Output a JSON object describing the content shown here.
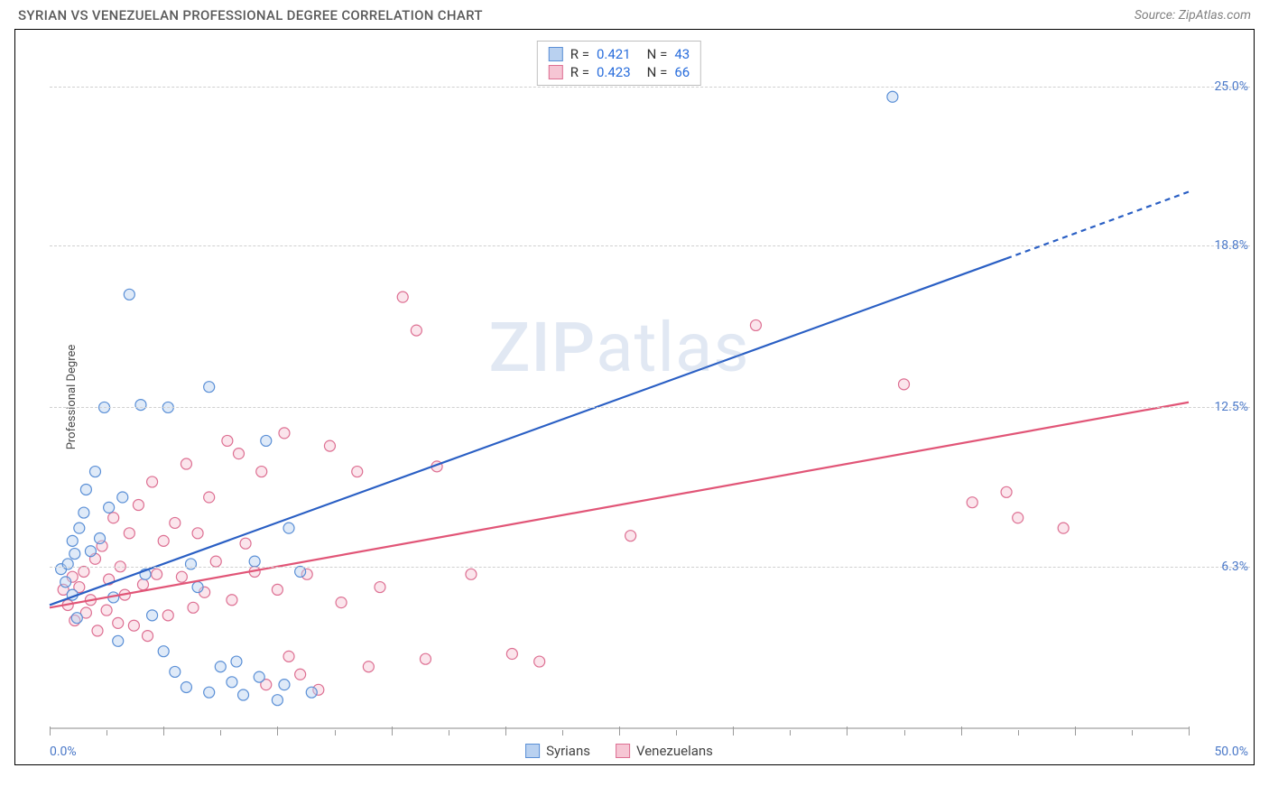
{
  "header": {
    "title": "SYRIAN VS VENEZUELAN PROFESSIONAL DEGREE CORRELATION CHART",
    "source": "Source: ZipAtlas.com"
  },
  "watermark": "ZIPatlas",
  "chart": {
    "type": "scatter",
    "y_axis_label": "Professional Degree",
    "xlim": [
      0,
      50
    ],
    "ylim": [
      0,
      27
    ],
    "x_tick_positions": [
      0,
      2.5,
      5,
      7.5,
      10,
      12.5,
      15,
      17.5,
      20,
      22.5,
      25,
      27.5,
      30,
      32.5,
      35,
      37.5,
      40,
      42.5,
      45,
      47.5,
      50
    ],
    "x_major_ticks": [
      0,
      5,
      10,
      15,
      20,
      25,
      30,
      35,
      40,
      45,
      50
    ],
    "x_label_min": "0.0%",
    "x_label_max": "50.0%",
    "y_gridlines": [
      {
        "value": 6.3,
        "label": "6.3%"
      },
      {
        "value": 12.5,
        "label": "12.5%"
      },
      {
        "value": 18.8,
        "label": "18.8%"
      },
      {
        "value": 25.0,
        "label": "25.0%"
      }
    ],
    "background_color": "#ffffff",
    "grid_color": "#d0d0d0",
    "axis_label_color": "#4a78c8",
    "border_color": "#000000",
    "marker_radius": 6,
    "marker_stroke_width": 1.2,
    "marker_fill_opacity": 0.45,
    "trendline_width": 2.2,
    "stats_legend": {
      "rows": [
        {
          "swatch_fill": "#b9d1f0",
          "swatch_stroke": "#5a8fd6",
          "r_label": "R =",
          "r_value": "0.421",
          "n_label": "N =",
          "n_value": "43"
        },
        {
          "swatch_fill": "#f6c6d4",
          "swatch_stroke": "#dd6f92",
          "r_label": "R =",
          "r_value": "0.423",
          "n_label": "N =",
          "n_value": "66"
        }
      ]
    },
    "series_legend": [
      {
        "swatch_fill": "#b9d1f0",
        "swatch_stroke": "#5a8fd6",
        "label": "Syrians"
      },
      {
        "swatch_fill": "#f6c6d4",
        "swatch_stroke": "#dd6f92",
        "label": "Venezuelans"
      }
    ],
    "series": [
      {
        "name": "Syrians",
        "marker_fill": "#b9d1f0",
        "marker_stroke": "#5a8fd6",
        "trendline_color": "#2a5fc4",
        "trendline": {
          "x1": 0,
          "y1": 4.8,
          "x2": 42,
          "y2": 18.3,
          "dash_from_x": 42,
          "dash_to_x": 50,
          "dash_to_y": 20.9
        },
        "points": [
          [
            0.5,
            6.2
          ],
          [
            0.7,
            5.7
          ],
          [
            0.8,
            6.4
          ],
          [
            1.0,
            7.3
          ],
          [
            1.1,
            6.8
          ],
          [
            1.0,
            5.2
          ],
          [
            1.3,
            7.8
          ],
          [
            1.5,
            8.4
          ],
          [
            1.6,
            9.3
          ],
          [
            1.2,
            4.3
          ],
          [
            1.8,
            6.9
          ],
          [
            2.0,
            10.0
          ],
          [
            2.2,
            7.4
          ],
          [
            2.4,
            12.5
          ],
          [
            2.6,
            8.6
          ],
          [
            2.8,
            5.1
          ],
          [
            3.0,
            3.4
          ],
          [
            3.2,
            9.0
          ],
          [
            3.5,
            16.9
          ],
          [
            4.0,
            12.6
          ],
          [
            4.2,
            6.0
          ],
          [
            4.5,
            4.4
          ],
          [
            5.0,
            3.0
          ],
          [
            5.2,
            12.5
          ],
          [
            5.5,
            2.2
          ],
          [
            6.0,
            1.6
          ],
          [
            6.2,
            6.4
          ],
          [
            6.5,
            5.5
          ],
          [
            7.0,
            1.4
          ],
          [
            7.0,
            13.3
          ],
          [
            7.5,
            2.4
          ],
          [
            8.0,
            1.8
          ],
          [
            8.2,
            2.6
          ],
          [
            8.5,
            1.3
          ],
          [
            9.0,
            6.5
          ],
          [
            9.2,
            2.0
          ],
          [
            9.5,
            11.2
          ],
          [
            10.0,
            1.1
          ],
          [
            10.3,
            1.7
          ],
          [
            10.5,
            7.8
          ],
          [
            11.0,
            6.1
          ],
          [
            11.5,
            1.4
          ],
          [
            37.0,
            24.6
          ]
        ]
      },
      {
        "name": "Venezuelans",
        "marker_fill": "#f6c6d4",
        "marker_stroke": "#dd6f92",
        "trendline_color": "#e15577",
        "trendline": {
          "x1": 0,
          "y1": 4.7,
          "x2": 50,
          "y2": 12.7
        },
        "points": [
          [
            0.6,
            5.4
          ],
          [
            0.8,
            4.8
          ],
          [
            1.0,
            5.9
          ],
          [
            1.1,
            4.2
          ],
          [
            1.3,
            5.5
          ],
          [
            1.5,
            6.1
          ],
          [
            1.6,
            4.5
          ],
          [
            1.8,
            5.0
          ],
          [
            2.0,
            6.6
          ],
          [
            2.1,
            3.8
          ],
          [
            2.3,
            7.1
          ],
          [
            2.5,
            4.6
          ],
          [
            2.6,
            5.8
          ],
          [
            2.8,
            8.2
          ],
          [
            3.0,
            4.1
          ],
          [
            3.1,
            6.3
          ],
          [
            3.3,
            5.2
          ],
          [
            3.5,
            7.6
          ],
          [
            3.7,
            4.0
          ],
          [
            3.9,
            8.7
          ],
          [
            4.1,
            5.6
          ],
          [
            4.3,
            3.6
          ],
          [
            4.5,
            9.6
          ],
          [
            4.7,
            6.0
          ],
          [
            5.0,
            7.3
          ],
          [
            5.2,
            4.4
          ],
          [
            5.5,
            8.0
          ],
          [
            5.8,
            5.9
          ],
          [
            6.0,
            10.3
          ],
          [
            6.3,
            4.7
          ],
          [
            6.5,
            7.6
          ],
          [
            6.8,
            5.3
          ],
          [
            7.0,
            9.0
          ],
          [
            7.3,
            6.5
          ],
          [
            7.8,
            11.2
          ],
          [
            8.0,
            5.0
          ],
          [
            8.3,
            10.7
          ],
          [
            8.6,
            7.2
          ],
          [
            9.0,
            6.1
          ],
          [
            9.3,
            10.0
          ],
          [
            9.5,
            1.7
          ],
          [
            10.0,
            5.4
          ],
          [
            10.3,
            11.5
          ],
          [
            10.5,
            2.8
          ],
          [
            11.0,
            2.1
          ],
          [
            11.3,
            6.0
          ],
          [
            11.8,
            1.5
          ],
          [
            12.3,
            11.0
          ],
          [
            12.8,
            4.9
          ],
          [
            13.5,
            10.0
          ],
          [
            14.0,
            2.4
          ],
          [
            14.5,
            5.5
          ],
          [
            15.5,
            16.8
          ],
          [
            16.1,
            15.5
          ],
          [
            16.5,
            2.7
          ],
          [
            17.0,
            10.2
          ],
          [
            18.5,
            6.0
          ],
          [
            20.3,
            2.9
          ],
          [
            21.5,
            2.6
          ],
          [
            25.5,
            7.5
          ],
          [
            31.0,
            15.7
          ],
          [
            37.5,
            13.4
          ],
          [
            40.5,
            8.8
          ],
          [
            42.0,
            9.2
          ],
          [
            42.5,
            8.2
          ],
          [
            44.5,
            7.8
          ]
        ]
      }
    ]
  }
}
